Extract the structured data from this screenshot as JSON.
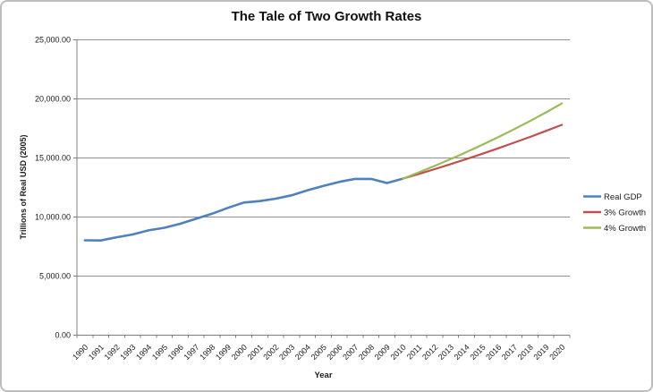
{
  "chart_data": {
    "type": "line",
    "title": "The Tale of Two Growth Rates",
    "xlabel": "Year",
    "ylabel": "Trillions of Real USD (2005)",
    "ylim": [
      0,
      25000
    ],
    "grid": true,
    "legend_position": "right",
    "axis_color": "#7f7f7f",
    "grid_color": "#8e8e8e",
    "y_ticks": [
      {
        "value": 25000,
        "label": "25,000.00"
      },
      {
        "value": 20000,
        "label": "20,000.00"
      },
      {
        "value": 15000,
        "label": "15,000.00"
      },
      {
        "value": 10000,
        "label": "10,000.00"
      },
      {
        "value": 5000,
        "label": "5,000.00"
      },
      {
        "value": 0,
        "label": "0.00"
      }
    ],
    "categories": [
      "1990",
      "1991",
      "1992",
      "1993",
      "1994",
      "1995",
      "1996",
      "1997",
      "1998",
      "1999",
      "2000",
      "2001",
      "2002",
      "2003",
      "2004",
      "2005",
      "2006",
      "2007",
      "2008",
      "2009",
      "2010",
      "2011",
      "2012",
      "2013",
      "2014",
      "2015",
      "2016",
      "2017",
      "2018",
      "2019",
      "2020"
    ],
    "series": [
      {
        "name": "Real GDP",
        "color": "#4F81BD",
        "values": [
          8033.9,
          8015.1,
          8287.1,
          8523.4,
          8870.7,
          9093.7,
          9433.9,
          9854.3,
          10283.5,
          10779.8,
          11226.0,
          11347.2,
          11553.0,
          11840.7,
          12263.8,
          12638.4,
          12976.2,
          13228.9,
          13228.8,
          12880.6,
          13248.2,
          null,
          null,
          null,
          null,
          null,
          null,
          null,
          null,
          null,
          null
        ]
      },
      {
        "name": "3% Growth",
        "color": "#C0504D",
        "values": [
          null,
          null,
          null,
          null,
          null,
          null,
          null,
          null,
          null,
          null,
          null,
          null,
          null,
          null,
          null,
          null,
          null,
          null,
          null,
          null,
          13248.2,
          13645.6,
          14055.0,
          14476.7,
          14911.0,
          15358.3,
          15819.1,
          16293.6,
          16782.4,
          17285.9,
          17804.5
        ]
      },
      {
        "name": "4% Growth",
        "color": "#9BBB59",
        "values": [
          null,
          null,
          null,
          null,
          null,
          null,
          null,
          null,
          null,
          null,
          null,
          null,
          null,
          null,
          null,
          null,
          null,
          null,
          null,
          null,
          13248.2,
          13778.1,
          14329.2,
          14902.4,
          15498.5,
          16118.4,
          16763.2,
          17433.7,
          18131.0,
          18856.3,
          19610.5
        ]
      }
    ]
  }
}
